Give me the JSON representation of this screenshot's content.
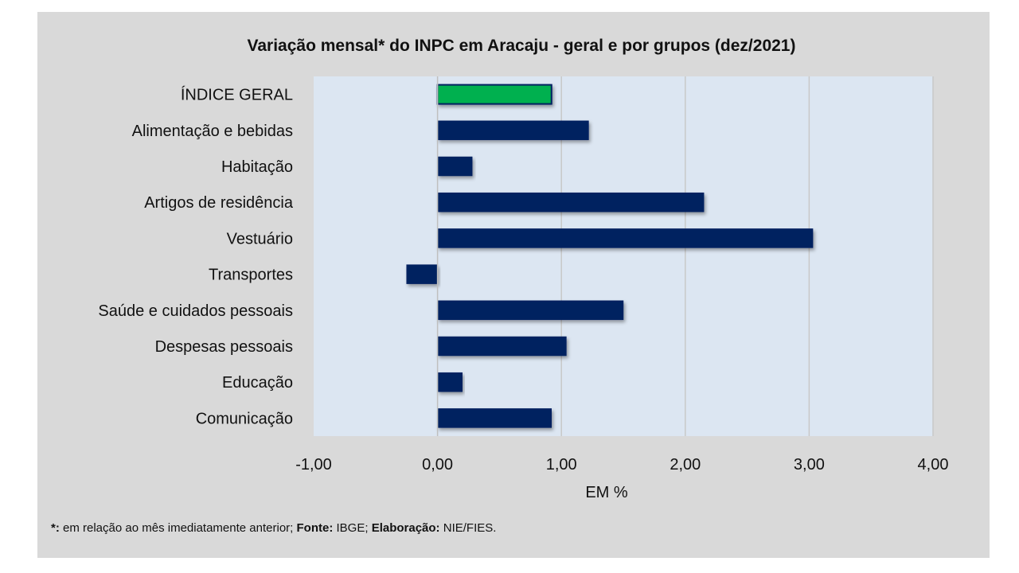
{
  "chart_data": {
    "type": "bar",
    "orientation": "horizontal",
    "title": "Variação mensal* do INPC em Aracaju - geral e por grupos (dez/2021)",
    "xlabel": "EM %",
    "ylabel": "",
    "xlim": [
      -1,
      4
    ],
    "xticks": [
      -1,
      0,
      1,
      2,
      3,
      4
    ],
    "xtick_labels": [
      "-1,00",
      "0,00",
      "1,00",
      "2,00",
      "3,00",
      "4,00"
    ],
    "grid": true,
    "categories": [
      "ÍNDICE GERAL",
      "Alimentação e bebidas",
      "Habitação",
      "Artigos de residência",
      "Vestuário",
      "Transportes",
      "Saúde e cuidados pessoais",
      "Despesas pessoais",
      "Educação",
      "Comunicação"
    ],
    "values": [
      0.92,
      1.22,
      0.28,
      2.15,
      3.03,
      -0.25,
      1.5,
      1.04,
      0.2,
      0.92
    ],
    "colors": {
      "highlight": "#00b050",
      "default": "#002060",
      "plot_bg": "#dce6f2",
      "panel_bg": "#d9d9d9",
      "grid": "#c8c8c8"
    }
  },
  "footnote": {
    "star_label": "*:",
    "star_text": " em relação ao mês imediatamente anterior; ",
    "source_label": "Fonte:",
    "source_text": " IBGE; ",
    "elab_label": "Elaboração:",
    "elab_text": " NIE/FIES."
  }
}
